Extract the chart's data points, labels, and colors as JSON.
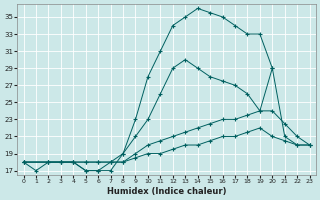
{
  "xlabel": "Humidex (Indice chaleur)",
  "bg_color": "#cce8e8",
  "grid_color": "#b0d8d8",
  "line_color": "#006060",
  "xlim": [
    -0.5,
    23.5
  ],
  "ylim": [
    16.5,
    36.5
  ],
  "yticks": [
    17,
    19,
    21,
    23,
    25,
    27,
    29,
    31,
    33,
    35
  ],
  "xticks": [
    0,
    1,
    2,
    3,
    4,
    5,
    6,
    7,
    8,
    9,
    10,
    11,
    12,
    13,
    14,
    15,
    16,
    17,
    18,
    19,
    20,
    21,
    22,
    23
  ],
  "series": [
    {
      "x": [
        0,
        1,
        2,
        3,
        4,
        5,
        6,
        7,
        8,
        9,
        10,
        11,
        12,
        13,
        14,
        15,
        16,
        17,
        18,
        19,
        20,
        21,
        22,
        23
      ],
      "y": [
        18,
        17,
        18,
        18,
        18,
        17,
        17,
        17,
        19,
        23,
        28,
        31,
        34,
        35,
        36,
        35.5,
        35,
        34,
        33,
        33,
        29,
        21,
        20,
        20
      ]
    },
    {
      "x": [
        0,
        2,
        3,
        4,
        5,
        6,
        7,
        8,
        9,
        10,
        11,
        12,
        13,
        14,
        15,
        16,
        17,
        18,
        19,
        20
      ],
      "y": [
        18,
        18,
        18,
        18,
        17,
        17,
        18,
        19,
        21,
        23,
        26,
        29,
        30,
        29,
        28,
        27.5,
        27,
        26,
        24,
        29
      ]
    },
    {
      "x": [
        0,
        2,
        3,
        4,
        5,
        6,
        7,
        8,
        9,
        10,
        11,
        12,
        13,
        14,
        15,
        16,
        17,
        18,
        19,
        20,
        21,
        22,
        23
      ],
      "y": [
        18,
        18,
        18,
        18,
        18,
        18,
        18,
        18,
        19,
        20,
        20.5,
        21,
        21.5,
        22,
        22.5,
        23,
        23,
        23.5,
        24,
        24,
        22.5,
        21,
        20
      ]
    },
    {
      "x": [
        0,
        2,
        3,
        4,
        5,
        6,
        7,
        8,
        9,
        10,
        11,
        12,
        13,
        14,
        15,
        16,
        17,
        18,
        19,
        20,
        21,
        22,
        23
      ],
      "y": [
        18,
        18,
        18,
        18,
        18,
        18,
        18,
        18,
        18.5,
        19,
        19,
        19.5,
        20,
        20,
        20.5,
        21,
        21,
        21.5,
        22,
        21,
        20.5,
        20,
        20
      ]
    }
  ]
}
